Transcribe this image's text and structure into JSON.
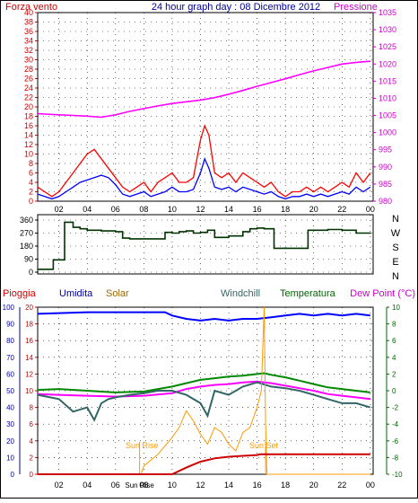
{
  "chart_data": [
    {
      "type": "line",
      "title": "24 hour graph day : 08 Dicembre 2012",
      "left_label": "Forza vento",
      "right_label": "Pressione",
      "left_ticks": [
        "0",
        "2",
        "4",
        "6",
        "8",
        "10",
        "12",
        "14",
        "16",
        "18",
        "20",
        "22",
        "24",
        "26",
        "28",
        "30",
        "32",
        "34",
        "36",
        "38",
        "40"
      ],
      "right_ticks": [
        "980",
        "985",
        "990",
        "995",
        "1000",
        "1005",
        "1010",
        "1015",
        "1020",
        "1025",
        "1030",
        "1035"
      ],
      "x_ticks": [
        "02",
        "04",
        "06",
        "08",
        "10",
        "12",
        "14",
        "16",
        "18",
        "20",
        "22",
        "00"
      ],
      "ylim_left": [
        0,
        40
      ],
      "ylim_right": [
        980,
        1035
      ],
      "xlim": [
        0.5,
        24.2
      ],
      "colors": {
        "gust": "#ff0000",
        "wind": "#0000ff",
        "pressure": "#ff00ff",
        "axis_left": "#cc0000",
        "axis_right": "#cc00cc",
        "title": "#000099"
      },
      "series": [
        {
          "key": "pressure",
          "axis": "right",
          "x": [
            0.5,
            1,
            2,
            3,
            4,
            5,
            6,
            7,
            8,
            9,
            10,
            11,
            12,
            13,
            14,
            15,
            16,
            17,
            18,
            19,
            20,
            21,
            22,
            23,
            24
          ],
          "values": [
            1005.5,
            1005.4,
            1005.2,
            1005,
            1004.8,
            1004.5,
            1005.2,
            1006.2,
            1007,
            1007.8,
            1008.5,
            1009,
            1009.5,
            1010.2,
            1011.2,
            1012.3,
            1013.5,
            1014.6,
            1015.7,
            1016.9,
            1018,
            1019,
            1020,
            1020.5,
            1020.8
          ]
        },
        {
          "key": "wind",
          "axis": "left",
          "x": [
            0.5,
            1,
            1.5,
            2,
            2.5,
            3,
            3.5,
            4,
            4.5,
            5,
            5.5,
            6,
            6.5,
            7,
            7.5,
            8,
            8.5,
            9,
            9.5,
            10,
            10.5,
            11,
            11.5,
            12,
            12.3,
            12.6,
            13,
            13.5,
            14,
            14.5,
            15,
            15.5,
            16,
            16.5,
            17,
            17.5,
            18,
            18.5,
            19,
            19.5,
            20,
            20.5,
            21,
            21.5,
            22,
            22.5,
            23,
            23.5,
            24
          ],
          "values": [
            1.5,
            1,
            0.5,
            1,
            2,
            3,
            4,
            4.5,
            5,
            5.5,
            5,
            3.5,
            1.5,
            1,
            1.5,
            2,
            1,
            1.5,
            2,
            3,
            2,
            2,
            2.5,
            6,
            9,
            7,
            3,
            2.5,
            3,
            2,
            3,
            2.5,
            2,
            1.5,
            2,
            1,
            0.5,
            1,
            1,
            1.5,
            1,
            1.5,
            1,
            1.5,
            2,
            1.5,
            3,
            2,
            3
          ]
        },
        {
          "key": "gust",
          "axis": "left",
          "x": [
            0.5,
            1,
            1.5,
            2,
            2.5,
            3,
            3.5,
            4,
            4.5,
            5,
            5.5,
            6,
            6.5,
            7,
            7.5,
            8,
            8.5,
            9,
            9.5,
            10,
            10.5,
            11,
            11.5,
            12,
            12.3,
            12.6,
            13,
            13.5,
            14,
            14.5,
            15,
            15.5,
            16,
            16.5,
            17,
            17.5,
            18,
            18.5,
            19,
            19.5,
            20,
            20.5,
            21,
            21.5,
            22,
            22.5,
            23,
            23.5,
            24
          ],
          "values": [
            3,
            2,
            1,
            2,
            4,
            6,
            8,
            10,
            11,
            9,
            7,
            5,
            3,
            2,
            3,
            4,
            2,
            4,
            5,
            6,
            4,
            4,
            5,
            13,
            16,
            14,
            6,
            5,
            6,
            4,
            6,
            5,
            4,
            3,
            4,
            2,
            1,
            2,
            2,
            3,
            2,
            3,
            2,
            3,
            4,
            3,
            6,
            4,
            6
          ]
        }
      ]
    },
    {
      "type": "line",
      "left_ticks": [
        "0",
        "90",
        "180",
        "270",
        "360"
      ],
      "right_labels": [
        "N",
        "W",
        "S",
        "E",
        "N"
      ],
      "x_ticks": [
        "02",
        "04",
        "06",
        "08",
        "10",
        "12",
        "14",
        "16",
        "18",
        "20",
        "22",
        "00"
      ],
      "ylim": [
        0,
        360
      ],
      "xlim": [
        0.5,
        24.2
      ],
      "series": [
        {
          "key": "direction",
          "color": "#003300",
          "x": [
            0.5,
            1.5,
            1.6,
            2.3,
            2.4,
            3,
            3.5,
            4,
            5,
            6,
            6.5,
            7,
            8,
            9,
            9.5,
            10,
            10.5,
            11,
            11.5,
            12,
            12.5,
            13,
            14,
            15,
            15.5,
            16,
            16.5,
            17,
            17.2,
            18,
            19,
            19.5,
            19.6,
            20,
            21,
            22,
            23,
            24
          ],
          "values": [
            20,
            20,
            85,
            85,
            345,
            310,
            300,
            290,
            285,
            280,
            235,
            230,
            230,
            230,
            275,
            270,
            280,
            285,
            270,
            275,
            290,
            240,
            250,
            280,
            300,
            305,
            300,
            300,
            165,
            165,
            165,
            165,
            290,
            290,
            295,
            290,
            270,
            275
          ]
        }
      ]
    },
    {
      "type": "line",
      "labels": {
        "rain": "Pioggia",
        "humidity": "Umidita",
        "solar": "Solar",
        "windchill": "Windchill",
        "temperature": "Temperatura",
        "dewpoint": "Dew Point (°C)"
      },
      "annotations": {
        "sunrise": "Sun Rise",
        "sunset": "Sun Set"
      },
      "left_ticks": [
        "0",
        "10",
        "20",
        "30",
        "40",
        "50",
        "60",
        "70",
        "80",
        "90",
        "100"
      ],
      "left2_ticks": [
        "0",
        "2",
        "4",
        "6",
        "8",
        "10",
        "12",
        "14",
        "16",
        "18",
        "20"
      ],
      "right_ticks": [
        "-10",
        "-8",
        "-6",
        "-4",
        "-2",
        "0",
        "2",
        "4",
        "6",
        "8",
        "10"
      ],
      "x_ticks": [
        "02",
        "04",
        "06",
        "08",
        "10",
        "12",
        "14",
        "16",
        "18",
        "20",
        "22",
        "00"
      ],
      "ylim_humidity": [
        0,
        100
      ],
      "ylim_temp": [
        -10,
        10
      ],
      "xlim": [
        0.5,
        24.2
      ],
      "sunrise_hour": 7.7,
      "sunset_hour": 16.6,
      "series": [
        {
          "key": "humidity",
          "color": "#0000ff",
          "axis": "humidity",
          "x": [
            0.5,
            4,
            8,
            9.5,
            10,
            11,
            12,
            13,
            14,
            15,
            16,
            17,
            18,
            19,
            20,
            21,
            22,
            23,
            24
          ],
          "values": [
            96,
            97,
            97,
            97,
            95,
            93,
            92,
            93,
            92,
            93,
            93,
            94,
            95,
            96,
            95,
            96,
            95,
            96,
            95
          ]
        },
        {
          "key": "temperature",
          "color": "#008800",
          "axis": "temp",
          "x": [
            0.5,
            2,
            4,
            6,
            8,
            10,
            11,
            12,
            13,
            14,
            15,
            16,
            16.5,
            17,
            18,
            19,
            20,
            21,
            22,
            23,
            24
          ],
          "values": [
            0.1,
            0.2,
            0,
            -0.2,
            -0.1,
            0.5,
            0.9,
            1.3,
            1.5,
            1.7,
            1.8,
            2,
            2.1,
            1.9,
            1.6,
            1.2,
            0.8,
            0.4,
            0.2,
            0,
            -0.2
          ]
        },
        {
          "key": "dewpoint",
          "color": "#ff00ff",
          "axis": "temp",
          "x": [
            0.5,
            2,
            4,
            6,
            8,
            10,
            11,
            12,
            13,
            14,
            15,
            16,
            17,
            18,
            19,
            20,
            21,
            22,
            23,
            24
          ],
          "values": [
            -0.4,
            -0.5,
            -0.6,
            -0.7,
            -0.6,
            -0.3,
            0.2,
            0.5,
            0.7,
            0.8,
            1,
            1.1,
            0.9,
            0.6,
            0.3,
            0,
            -0.4,
            -0.6,
            -0.8,
            -1
          ]
        },
        {
          "key": "windchill",
          "color": "#336666",
          "axis": "temp",
          "x": [
            0.5,
            2,
            3,
            4,
            4.5,
            5,
            5.5,
            6,
            7,
            8,
            9,
            10,
            11,
            12,
            12.5,
            13,
            14,
            15,
            16,
            17,
            18,
            19,
            20,
            21,
            22,
            23,
            24
          ],
          "values": [
            -0.5,
            -1,
            -2.5,
            -2,
            -3.5,
            -1.5,
            -1,
            -0.8,
            -0.5,
            -0.3,
            0,
            0,
            -0.5,
            -1.5,
            -3,
            0,
            -0.5,
            0.5,
            1,
            0.5,
            0.3,
            0,
            -0.5,
            -1,
            -1.5,
            -1.5,
            -2
          ]
        },
        {
          "key": "solar",
          "color": "#ff9900",
          "axis": "humidity",
          "x": [
            0.5,
            7.8,
            8,
            9,
            10,
            10.5,
            11,
            11.5,
            12,
            12.5,
            13,
            13.5,
            14,
            14.5,
            15,
            15.5,
            16,
            16.3,
            16.5,
            16.6,
            16.7,
            17,
            24
          ],
          "values": [
            0,
            0,
            5,
            12,
            22,
            28,
            38,
            32,
            24,
            18,
            28,
            25,
            18,
            14,
            25,
            28,
            40,
            50,
            100,
            30,
            0,
            0,
            0
          ]
        },
        {
          "key": "rain",
          "color": "#cc0000",
          "axis": "rain",
          "x": [
            0.5,
            10,
            11,
            12,
            13,
            14,
            15,
            16,
            16.2,
            17,
            18,
            20,
            22,
            23,
            24
          ],
          "values": [
            0,
            0,
            0.8,
            1.5,
            1.9,
            2.1,
            2.2,
            2.3,
            2.4,
            2.4,
            2.4,
            2.4,
            2.4,
            2.4,
            2.4
          ]
        }
      ]
    }
  ]
}
